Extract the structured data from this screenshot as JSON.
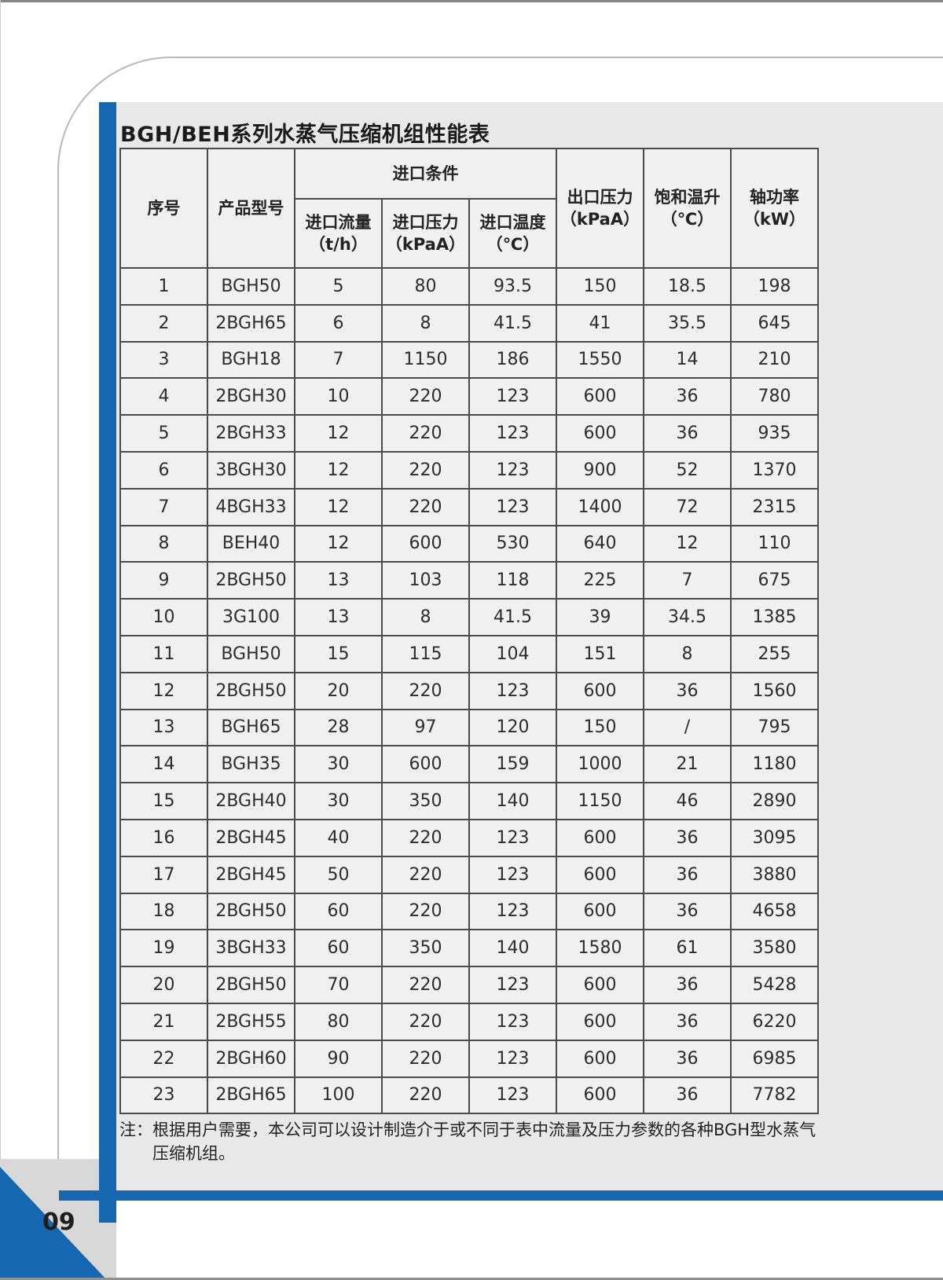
{
  "page": {
    "title": "BGH/BEH系列水蒸气压缩机组性能表",
    "page_number": "09",
    "note_line1": "注：根据用户需要，本公司可以设计制造介于或不同于表中流量及压力参数的各种BGH型水蒸气",
    "note_line2": "压缩机组。"
  },
  "colors": {
    "accent_blue": "#1467b0",
    "border_dark": "#4b4b4b",
    "panel_gray": "#e9e9e9",
    "cell_gray": "#f1f1f1",
    "block_gray": "#d8d8d8"
  },
  "table": {
    "header": {
      "col_seq": "序号",
      "col_model": "产品型号",
      "group_inlet": "进口条件",
      "col_inlet_flow": "进口流量",
      "col_inlet_flow_unit": "（t/h）",
      "col_inlet_pressure": "进口压力",
      "col_inlet_pressure_unit": "（kPaA）",
      "col_inlet_temp": "进口温度",
      "col_inlet_temp_unit": "（℃）",
      "col_outlet_pressure": "出口压力",
      "col_outlet_pressure_unit": "（kPaA）",
      "col_sat_rise": "饱和温升",
      "col_sat_rise_unit": "（℃）",
      "col_shaft_power": "轴功率",
      "col_shaft_power_unit": "（kW）"
    },
    "rows": [
      [
        "1",
        "BGH50",
        "5",
        "80",
        "93.5",
        "150",
        "18.5",
        "198"
      ],
      [
        "2",
        "2BGH65",
        "6",
        "8",
        "41.5",
        "41",
        "35.5",
        "645"
      ],
      [
        "3",
        "BGH18",
        "7",
        "1150",
        "186",
        "1550",
        "14",
        "210"
      ],
      [
        "4",
        "2BGH30",
        "10",
        "220",
        "123",
        "600",
        "36",
        "780"
      ],
      [
        "5",
        "2BGH33",
        "12",
        "220",
        "123",
        "600",
        "36",
        "935"
      ],
      [
        "6",
        "3BGH30",
        "12",
        "220",
        "123",
        "900",
        "52",
        "1370"
      ],
      [
        "7",
        "4BGH33",
        "12",
        "220",
        "123",
        "1400",
        "72",
        "2315"
      ],
      [
        "8",
        "BEH40",
        "12",
        "600",
        "530",
        "640",
        "12",
        "110"
      ],
      [
        "9",
        "2BGH50",
        "13",
        "103",
        "118",
        "225",
        "7",
        "675"
      ],
      [
        "10",
        "3G100",
        "13",
        "8",
        "41.5",
        "39",
        "34.5",
        "1385"
      ],
      [
        "11",
        "BGH50",
        "15",
        "115",
        "104",
        "151",
        "8",
        "255"
      ],
      [
        "12",
        "2BGH50",
        "20",
        "220",
        "123",
        "600",
        "36",
        "1560"
      ],
      [
        "13",
        "BGH65",
        "28",
        "97",
        "120",
        "150",
        "/",
        "795"
      ],
      [
        "14",
        "BGH35",
        "30",
        "600",
        "159",
        "1000",
        "21",
        "1180"
      ],
      [
        "15",
        "2BGH40",
        "30",
        "350",
        "140",
        "1150",
        "46",
        "2890"
      ],
      [
        "16",
        "2BGH45",
        "40",
        "220",
        "123",
        "600",
        "36",
        "3095"
      ],
      [
        "17",
        "2BGH45",
        "50",
        "220",
        "123",
        "600",
        "36",
        "3880"
      ],
      [
        "18",
        "2BGH50",
        "60",
        "220",
        "123",
        "600",
        "36",
        "4658"
      ],
      [
        "19",
        "3BGH33",
        "60",
        "350",
        "140",
        "1580",
        "61",
        "3580"
      ],
      [
        "20",
        "2BGH50",
        "70",
        "220",
        "123",
        "600",
        "36",
        "5428"
      ],
      [
        "21",
        "2BGH55",
        "80",
        "220",
        "123",
        "600",
        "36",
        "6220"
      ],
      [
        "22",
        "2BGH60",
        "90",
        "220",
        "123",
        "600",
        "36",
        "6985"
      ],
      [
        "23",
        "2BGH65",
        "100",
        "220",
        "123",
        "600",
        "36",
        "7782"
      ]
    ]
  }
}
